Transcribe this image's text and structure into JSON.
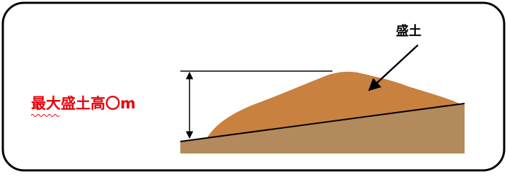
{
  "labels": {
    "fill": "盛土",
    "max_height": "最大盛土高〇m"
  }
}
